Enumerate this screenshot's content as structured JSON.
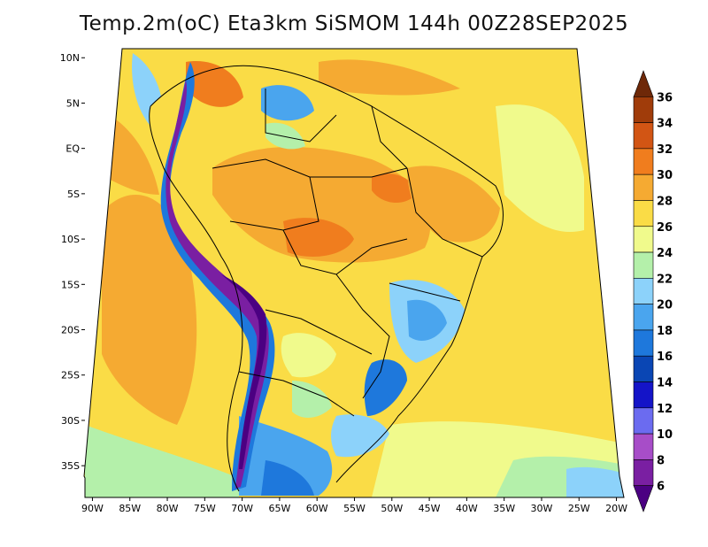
{
  "title": "Temp.2m(oC) Eta3km SiSMOM 144h 00Z28SEP2025",
  "map": {
    "lon_range": [
      -91,
      -19
    ],
    "lat_range": [
      -38.5,
      11
    ],
    "lon_ticks": [
      {
        "value": -90,
        "label": "90W"
      },
      {
        "value": -85,
        "label": "85W"
      },
      {
        "value": -80,
        "label": "80W"
      },
      {
        "value": -75,
        "label": "75W"
      },
      {
        "value": -70,
        "label": "70W"
      },
      {
        "value": -65,
        "label": "65W"
      },
      {
        "value": -60,
        "label": "60W"
      },
      {
        "value": -55,
        "label": "55W"
      },
      {
        "value": -50,
        "label": "50W"
      },
      {
        "value": -45,
        "label": "45W"
      },
      {
        "value": -40,
        "label": "40W"
      },
      {
        "value": -35,
        "label": "35W"
      },
      {
        "value": -30,
        "label": "30W"
      },
      {
        "value": -25,
        "label": "25W"
      },
      {
        "value": -20,
        "label": "20W"
      }
    ],
    "lat_ticks": [
      {
        "value": 10,
        "label": "10N"
      },
      {
        "value": 5,
        "label": "5N"
      },
      {
        "value": 0,
        "label": "EQ"
      },
      {
        "value": -5,
        "label": "5S"
      },
      {
        "value": -10,
        "label": "10S"
      },
      {
        "value": -15,
        "label": "15S"
      },
      {
        "value": -20,
        "label": "20S"
      },
      {
        "value": -25,
        "label": "25S"
      },
      {
        "value": -30,
        "label": "30S"
      },
      {
        "value": -35,
        "label": "35S"
      }
    ]
  },
  "colorbar": {
    "labels": [
      "6",
      "8",
      "10",
      "12",
      "14",
      "16",
      "18",
      "20",
      "22",
      "24",
      "26",
      "28",
      "30",
      "32",
      "34",
      "36"
    ],
    "colors": [
      "#4b0082",
      "#7a1fa2",
      "#a74dc8",
      "#6b6bf0",
      "#1414c8",
      "#0a46b4",
      "#1e78dc",
      "#4aa5ee",
      "#8cd2fa",
      "#b4f0aa",
      "#f0fa8c",
      "#fadc46",
      "#f5aa32",
      "#f07d1e",
      "#d25514",
      "#a03c0a",
      "#6e2808"
    ]
  }
}
